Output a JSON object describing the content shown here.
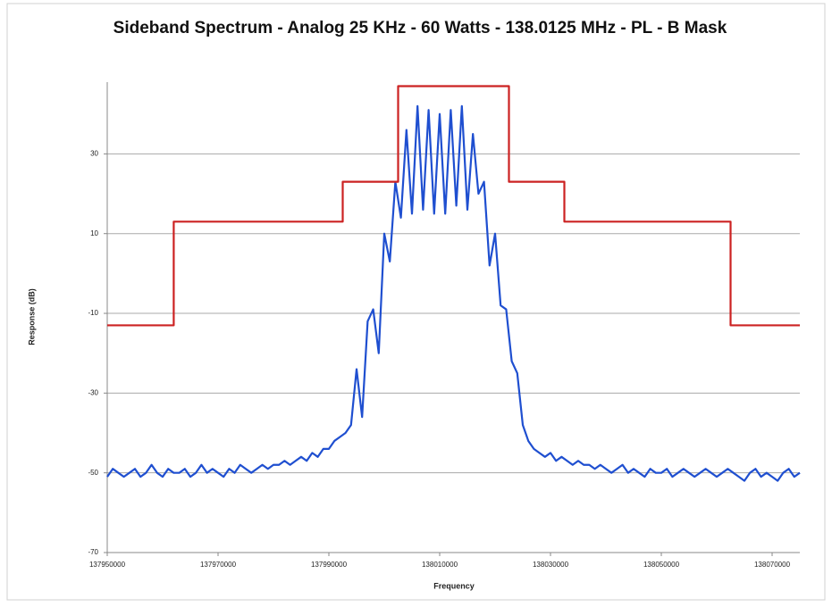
{
  "chart_data": {
    "type": "line",
    "title": "Sideband Spectrum  - Analog 25 KHz - 60 Watts - 138.0125 MHz - PL - B Mask",
    "xlabel": "Frequency",
    "ylabel": "Response (dB)",
    "xlim": [
      137950000,
      138075000
    ],
    "ylim": [
      -70,
      48
    ],
    "xticks": [
      137950000,
      137970000,
      137990000,
      138010000,
      138030000,
      138050000,
      138070000
    ],
    "yticks": [
      -70,
      -50,
      -30,
      -10,
      10,
      30
    ],
    "grid": true,
    "series": [
      {
        "color": "#1f4fd0",
        "x": [
          137950000,
          137951000,
          137952000,
          137953000,
          137954000,
          137955000,
          137956000,
          137957000,
          137958000,
          137959000,
          137960000,
          137961000,
          137962000,
          137963000,
          137964000,
          137965000,
          137966000,
          137967000,
          137968000,
          137969000,
          137970000,
          137971000,
          137972000,
          137973000,
          137974000,
          137975000,
          137976000,
          137977000,
          137978000,
          137979000,
          137980000,
          137981000,
          137982000,
          137983000,
          137984000,
          137985000,
          137986000,
          137987000,
          137988000,
          137989000,
          137990000,
          137991000,
          137992000,
          137993000,
          137994000,
          137995000,
          137996000,
          137997000,
          137998000,
          137999000,
          138000000,
          138001000,
          138002000,
          138003000,
          138004000,
          138005000,
          138006000,
          138007000,
          138008000,
          138009000,
          138010000,
          138011000,
          138012000,
          138013000,
          138014000,
          138015000,
          138016000,
          138017000,
          138018000,
          138019000,
          138020000,
          138021000,
          138022000,
          138023000,
          138024000,
          138025000,
          138026000,
          138027000,
          138028000,
          138029000,
          138030000,
          138031000,
          138032000,
          138033000,
          138034000,
          138035000,
          138036000,
          138037000,
          138038000,
          138039000,
          138040000,
          138041000,
          138042000,
          138043000,
          138044000,
          138045000,
          138046000,
          138047000,
          138048000,
          138049000,
          138050000,
          138051000,
          138052000,
          138053000,
          138054000,
          138055000,
          138056000,
          138057000,
          138058000,
          138059000,
          138060000,
          138061000,
          138062000,
          138063000,
          138064000,
          138065000,
          138066000,
          138067000,
          138068000,
          138069000,
          138070000,
          138071000,
          138072000,
          138073000,
          138074000,
          138075000
        ],
        "values": [
          -51,
          -49,
          -50,
          -51,
          -50,
          -49,
          -51,
          -50,
          -48,
          -50,
          -51,
          -49,
          -50,
          -50,
          -49,
          -51,
          -50,
          -48,
          -50,
          -49,
          -50,
          -51,
          -49,
          -50,
          -48,
          -49,
          -50,
          -49,
          -48,
          -49,
          -48,
          -48,
          -47,
          -48,
          -47,
          -46,
          -47,
          -45,
          -46,
          -44,
          -44,
          -42,
          -41,
          -40,
          -38,
          -24,
          -36,
          -12,
          -9,
          -20,
          10,
          3,
          23,
          14,
          36,
          15,
          42,
          16,
          41,
          15,
          40,
          15,
          41,
          17,
          42,
          16,
          35,
          20,
          23,
          2,
          10,
          -8,
          -9,
          -22,
          -25,
          -38,
          -42,
          -44,
          -45,
          -46,
          -45,
          -47,
          -46,
          -47,
          -48,
          -47,
          -48,
          -48,
          -49,
          -48,
          -49,
          -50,
          -49,
          -48,
          -50,
          -49,
          -50,
          -51,
          -49,
          -50,
          -50,
          -49,
          -51,
          -50,
          -49,
          -50,
          -51,
          -50,
          -49,
          -50,
          -51,
          -50,
          -49,
          -50,
          -51,
          -52,
          -50,
          -49,
          -51,
          -50,
          -51,
          -52,
          -50,
          -49,
          -51,
          -50
        ]
      },
      {
        "color": "#cc2222",
        "x": [
          137950000,
          137962000,
          137962000,
          137992500,
          137992500,
          138002500,
          138002500,
          138022500,
          138022500,
          138032500,
          138032500,
          138062500,
          138062500,
          138075000
        ],
        "values": [
          -13,
          -13,
          13,
          13,
          23,
          23,
          47,
          47,
          23,
          23,
          13,
          13,
          -13,
          -13
        ]
      }
    ]
  }
}
